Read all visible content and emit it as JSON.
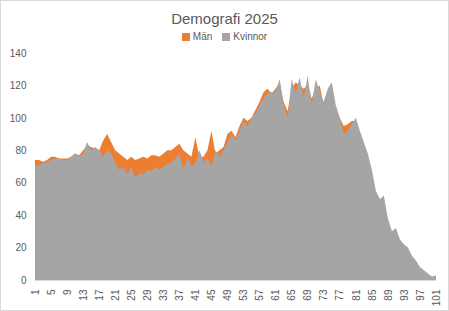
{
  "chart_data": {
    "type": "area",
    "title": "Demografi 2025",
    "x": [
      1,
      2,
      3,
      4,
      5,
      6,
      7,
      8,
      9,
      10,
      11,
      12,
      13,
      14,
      15,
      16,
      17,
      18,
      19,
      20,
      21,
      22,
      23,
      24,
      25,
      26,
      27,
      28,
      29,
      30,
      31,
      32,
      33,
      34,
      35,
      36,
      37,
      38,
      39,
      40,
      41,
      42,
      43,
      44,
      45,
      46,
      47,
      48,
      49,
      50,
      51,
      52,
      53,
      54,
      55,
      56,
      57,
      58,
      59,
      60,
      61,
      62,
      63,
      64,
      65,
      66,
      67,
      68,
      69,
      70,
      71,
      72,
      73,
      74,
      75,
      76,
      77,
      78,
      79,
      80,
      81,
      82,
      83,
      84,
      85,
      86,
      87,
      88,
      89,
      90,
      91,
      92,
      93,
      94,
      95,
      96,
      97,
      98,
      99,
      100,
      101
    ],
    "xlim": [
      1,
      101
    ],
    "xticks": [
      1,
      5,
      9,
      13,
      17,
      21,
      25,
      29,
      33,
      37,
      41,
      45,
      49,
      53,
      57,
      61,
      65,
      69,
      73,
      77,
      81,
      85,
      89,
      93,
      97,
      101
    ],
    "ylim": [
      0,
      140
    ],
    "yticks": [
      0,
      20,
      40,
      60,
      80,
      100,
      120,
      140
    ],
    "grid": false,
    "legend": "top",
    "series": [
      {
        "name": "Män",
        "color": "#ed7d31",
        "values": [
          74,
          74,
          73,
          74,
          76,
          76,
          75,
          75,
          75,
          76,
          78,
          77,
          80,
          83,
          82,
          81,
          80,
          86,
          90,
          85,
          80,
          78,
          76,
          74,
          76,
          74,
          75,
          76,
          75,
          77,
          77,
          76,
          78,
          80,
          80,
          82,
          84,
          80,
          78,
          76,
          88,
          76,
          76,
          80,
          92,
          78,
          80,
          82,
          90,
          92,
          88,
          95,
          100,
          98,
          100,
          105,
          110,
          116,
          118,
          115,
          118,
          122,
          110,
          104,
          118,
          122,
          120,
          118,
          120,
          112,
          118,
          120,
          108,
          114,
          118,
          105,
          100,
          95,
          96,
          98,
          98,
          90,
          83,
          76,
          66,
          52,
          48,
          50,
          35,
          28,
          30,
          22,
          20,
          18,
          13,
          10,
          7,
          5,
          3,
          2,
          2
        ]
      },
      {
        "name": "Kvinnor",
        "color": "#a5a5a5",
        "values": [
          70,
          71,
          72,
          73,
          74,
          75,
          75,
          74,
          74,
          76,
          78,
          76,
          78,
          85,
          80,
          82,
          80,
          76,
          80,
          78,
          72,
          68,
          70,
          65,
          70,
          63,
          66,
          65,
          68,
          67,
          70,
          68,
          70,
          72,
          72,
          75,
          78,
          68,
          76,
          70,
          72,
          80,
          73,
          75,
          70,
          80,
          76,
          80,
          85,
          90,
          86,
          92,
          98,
          95,
          100,
          103,
          108,
          112,
          115,
          116,
          116,
          124,
          108,
          100,
          124,
          115,
          125,
          112,
          126,
          108,
          124,
          116,
          110,
          118,
          122,
          108,
          100,
          90,
          92,
          96,
          100,
          92,
          85,
          78,
          68,
          55,
          50,
          52,
          38,
          30,
          32,
          25,
          22,
          20,
          15,
          12,
          8,
          6,
          4,
          2,
          3
        ]
      }
    ]
  }
}
